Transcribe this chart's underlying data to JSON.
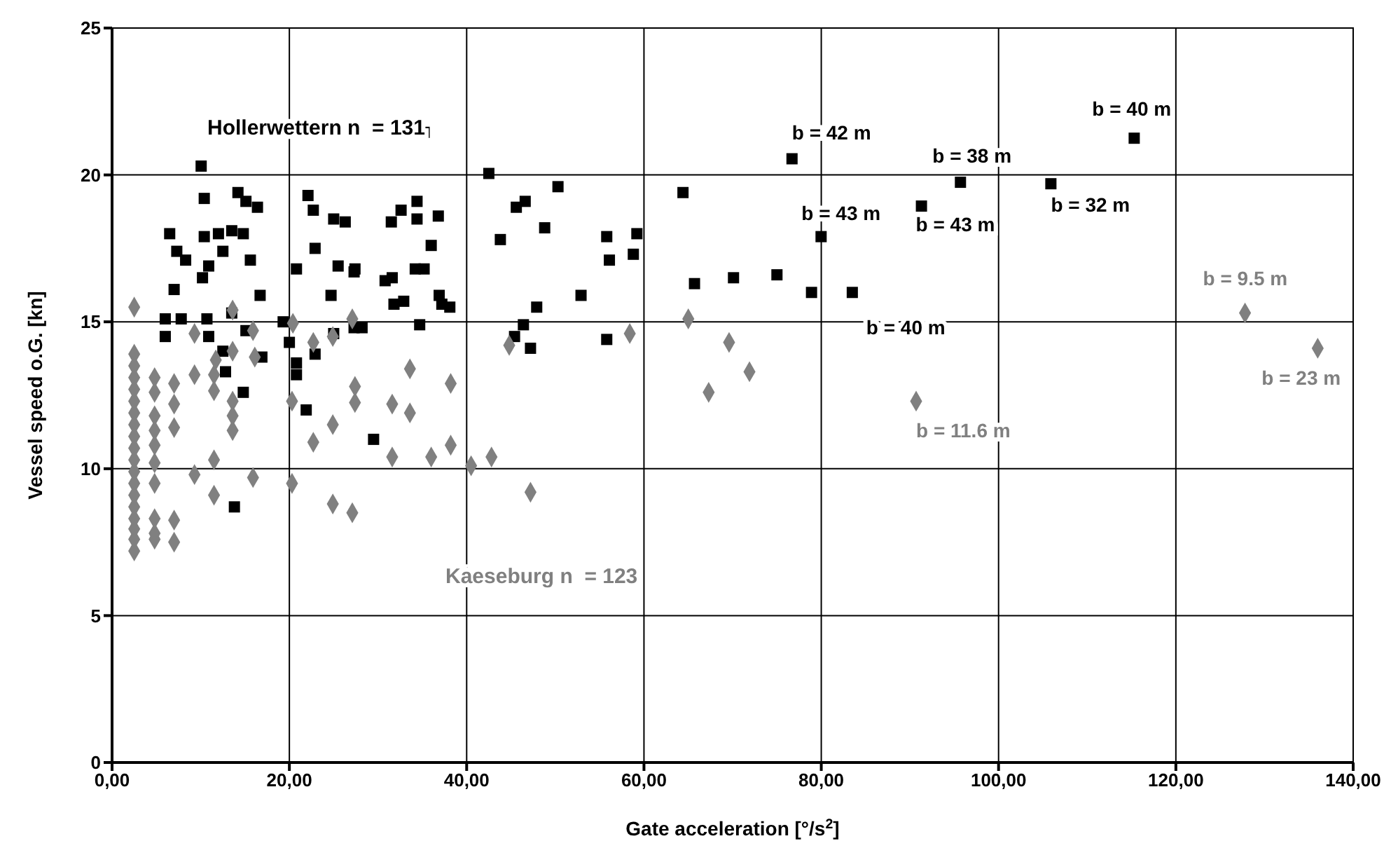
{
  "chart_data": {
    "type": "scatter",
    "xlabel": "Gate acceleration [°/s$^{2}$]",
    "ylabel": "Vessel speed o.G. [kn]",
    "xlim": [
      0,
      140
    ],
    "xticks": [
      {
        "value": 0,
        "label": "0,00"
      },
      {
        "value": 20,
        "label": "20,00"
      },
      {
        "value": 40,
        "label": "40,00"
      },
      {
        "value": 60,
        "label": "60,00"
      },
      {
        "value": 80,
        "label": "80,00"
      },
      {
        "value": 100,
        "label": "100,00"
      },
      {
        "value": 120,
        "label": "120,00"
      },
      {
        "value": 140,
        "label": "140,00"
      }
    ],
    "ylim": [
      0,
      25
    ],
    "yticks": [
      0,
      5,
      10,
      15,
      20,
      25
    ],
    "grid": true,
    "legend": false,
    "series": [
      {
        "name": "Hollerwettern n  = 131",
        "color": "#000000",
        "marker": "square",
        "x": [
          10.05,
          10.4,
          14.2,
          15.1,
          16.4,
          6.5,
          7.3,
          8.3,
          10.4,
          12,
          13.5,
          14.8,
          12.5,
          10.9,
          10.2,
          15.6,
          7.0,
          16.7,
          6.0,
          6.0,
          7.8,
          10.7,
          13.5,
          10.9,
          12.5,
          12.8,
          15.1,
          16.9,
          14.8,
          13.8,
          19.3,
          20.0,
          20.8,
          20.8,
          22.9,
          21.9,
          22.1,
          22.7,
          25,
          26.3,
          20.8,
          22.9,
          25.5,
          27.3,
          24.7,
          25,
          27.3,
          35.2,
          42.5,
          50.3,
          64.4,
          45.6,
          46.6,
          48.8,
          43.8,
          55.8,
          59.2,
          56.1,
          58.8,
          52.9,
          65.7,
          47.9,
          46.4,
          45.4,
          47.2,
          55.8,
          34.4,
          32.6,
          31.5,
          34.4,
          36.8,
          36.0,
          27.4,
          34.2,
          35.2,
          30.8,
          31.6,
          31.8,
          32.9,
          36.9,
          37.2,
          38.1,
          34.7,
          28.2,
          29.5,
          76.7,
          95.7,
          105.9,
          115.3,
          91.3,
          79.98,
          70.1,
          75,
          78.9,
          83.5
        ],
        "values": [
          20.3,
          19.2,
          19.4,
          19.1,
          18.9,
          18.0,
          17.4,
          17.1,
          17.9,
          18,
          18.1,
          18,
          17.4,
          16.9,
          16.5,
          17.1,
          16.1,
          15.9,
          15.1,
          14.5,
          15.1,
          15.1,
          15.3,
          14.5,
          14.0,
          13.3,
          14.7,
          13.8,
          12.6,
          8.7,
          15.0,
          14.3,
          13.6,
          13.2,
          13.9,
          12.0,
          19.3,
          18.8,
          18.5,
          18.4,
          16.8,
          17.5,
          16.9,
          16.7,
          15.9,
          14.6,
          14.8,
          21.45,
          20.05,
          19.6,
          19.4,
          18.9,
          19.1,
          18.2,
          17.8,
          17.9,
          18.0,
          17.1,
          17.3,
          15.9,
          16.3,
          15.5,
          14.9,
          14.5,
          14.1,
          14.4,
          19.1,
          18.8,
          18.4,
          18.5,
          18.6,
          17.6,
          16.8,
          16.8,
          16.8,
          16.4,
          16.5,
          15.6,
          15.7,
          15.9,
          15.6,
          15.5,
          14.9,
          14.8,
          11.0,
          20.55,
          19.75,
          19.7,
          21.25,
          18.94,
          17.9,
          16.5,
          16.6,
          16.0,
          16.0
        ]
      },
      {
        "name": "Kaeseburg n  = 123",
        "color": "#808080",
        "marker": "diamond",
        "x": [
          127.8,
          136.0,
          90.7,
          69.6,
          71.9,
          67.3,
          65.0,
          58.4,
          44.8,
          27.1,
          33.6,
          38.2,
          27.4,
          27.4,
          31.6,
          33.6,
          38.2,
          36.0,
          31.6,
          40.5,
          42.8,
          47.2,
          27.1,
          2.5,
          13.6,
          9.3,
          15.9,
          20.4,
          22.7,
          24.9,
          16.1,
          13.6,
          11.7,
          11.5,
          9.3,
          4.8,
          7.0,
          4.8,
          7.0,
          13.6,
          13.6,
          11.5,
          20.3,
          24.9,
          22.7,
          7.0,
          13.6,
          4.8,
          4.8,
          4.8,
          4.8,
          4.8,
          11.5,
          9.3,
          15.9,
          20.3,
          11.5,
          24.9,
          7.0,
          4.8,
          4.8,
          7.0,
          2.5,
          2.5,
          2.5,
          2.5,
          2.5,
          2.5,
          2.5,
          2.5,
          2.5,
          2.5,
          2.5,
          2.5,
          2.5,
          2.5,
          2.5,
          2.5,
          2.5,
          2.5,
          4.8
        ],
        "values": [
          15.3,
          14.1,
          12.3,
          14.3,
          13.3,
          12.6,
          15.1,
          14.6,
          14.2,
          15.1,
          13.4,
          12.9,
          12.8,
          12.25,
          12.2,
          11.9,
          10.8,
          10.4,
          10.4,
          10.1,
          10.4,
          9.2,
          8.5,
          15.5,
          15.4,
          14.6,
          14.7,
          14.95,
          14.3,
          14.5,
          13.8,
          14.0,
          13.7,
          13.2,
          13.2,
          13.1,
          12.9,
          12.6,
          12.2,
          12.3,
          11.8,
          12.65,
          12.3,
          11.5,
          10.9,
          11.4,
          11.3,
          11.8,
          11.3,
          10.8,
          10.2,
          9.5,
          10.3,
          9.8,
          9.7,
          9.5,
          9.1,
          8.8,
          8.25,
          8.3,
          7.8,
          7.5,
          7.95,
          7.2,
          13.9,
          13.5,
          13.1,
          12.7,
          12.3,
          11.9,
          11.5,
          11.1,
          10.7,
          10.3,
          9.9,
          9.5,
          9.1,
          8.7,
          8.3,
          7.6,
          7.6
        ]
      }
    ],
    "annotations": [
      {
        "text": "b = 42 m",
        "x": 76.7,
        "y": 20.55
      },
      {
        "text": "b = 43 m",
        "x": 79.98,
        "y": 17.9
      },
      {
        "text": "b = 38 m",
        "x": 95.7,
        "y": 19.75
      },
      {
        "text": "b = 43 m",
        "x": 91.3,
        "y": 18.94
      },
      {
        "text": "b = 32 m",
        "x": 105.9,
        "y": 19.7
      },
      {
        "text": "b = 40 m",
        "x": 115.3,
        "y": 21.25
      },
      {
        "text": "b = 40 m",
        "x": 83.5,
        "y": 16.0
      },
      {
        "text": "b = 9.5 m",
        "x": 127.8,
        "y": 15.3
      },
      {
        "text": "b = 23 m",
        "x": 136.0,
        "y": 14.1
      },
      {
        "text": "b = 11.6 m",
        "x": 90.7,
        "y": 12.3
      }
    ]
  }
}
